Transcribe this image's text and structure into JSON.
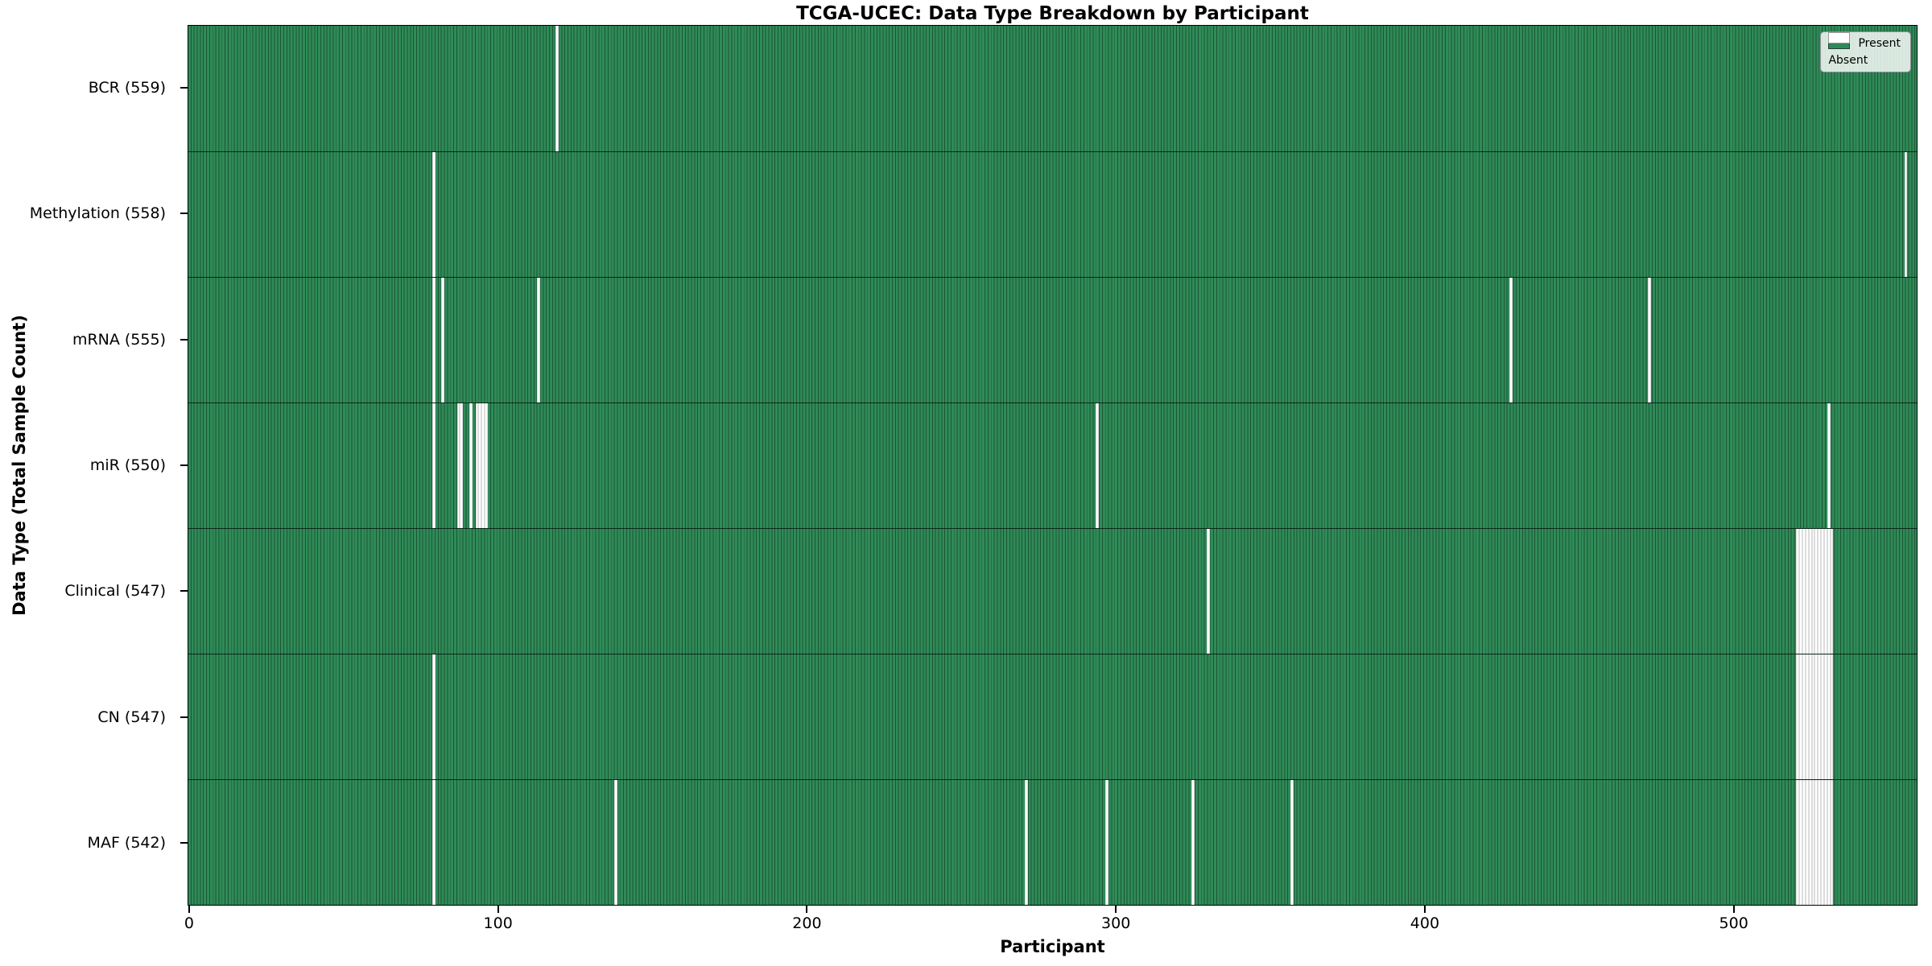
{
  "title": "TCGA-UCEC: Data Type Breakdown by Participant",
  "legend": {
    "present_label": "Present",
    "absent_label": "Absent"
  },
  "colors": {
    "present": "#2e8b57",
    "present_edge": "#1c5636",
    "absent": "#ffffff",
    "row_boundary": "#0a2315",
    "legend_border": "#8f8f8f"
  },
  "chart_data": {
    "type": "heatmap",
    "title": "TCGA-UCEC: Data Type Breakdown by Participant",
    "xlabel": "Participant",
    "ylabel": "Data Type (Total Sample Count)",
    "legend_entries": [
      "Present",
      "Absent"
    ],
    "legend_position": "upper right",
    "grid": false,
    "n_participants": 560,
    "xlim": [
      -0.5,
      559.5
    ],
    "x_ticks": [
      0,
      100,
      200,
      300,
      400,
      500
    ],
    "x_tick_labels": [
      "0",
      "100",
      "200",
      "300",
      "400",
      "500"
    ],
    "rows": [
      {
        "label": "BCR (559)",
        "data_type": "BCR",
        "total": 559,
        "absent": [
          119
        ]
      },
      {
        "label": "Methylation (558)",
        "data_type": "Methylation",
        "total": 558,
        "absent": [
          79,
          556
        ]
      },
      {
        "label": "mRNA (555)",
        "data_type": "mRNA",
        "total": 555,
        "absent": [
          79,
          82,
          113,
          428,
          473
        ]
      },
      {
        "label": "miR (550)",
        "data_type": "miR",
        "total": 550,
        "absent": [
          79,
          87,
          88,
          91,
          93,
          94,
          95,
          96,
          294,
          531
        ]
      },
      {
        "label": "Clinical (547)",
        "data_type": "Clinical",
        "total": 547,
        "absent": [
          330,
          521,
          522,
          523,
          524,
          525,
          526,
          527,
          528,
          529,
          530,
          531,
          532
        ]
      },
      {
        "label": "CN (547)",
        "data_type": "CN",
        "total": 547,
        "absent": [
          79,
          521,
          522,
          523,
          524,
          525,
          526,
          527,
          528,
          529,
          530,
          531,
          532
        ]
      },
      {
        "label": "MAF (542)",
        "data_type": "MAF",
        "total": 542,
        "absent": [
          79,
          138,
          271,
          297,
          325,
          357,
          521,
          522,
          523,
          524,
          525,
          526,
          527,
          528,
          529,
          530,
          531,
          532
        ]
      }
    ]
  }
}
